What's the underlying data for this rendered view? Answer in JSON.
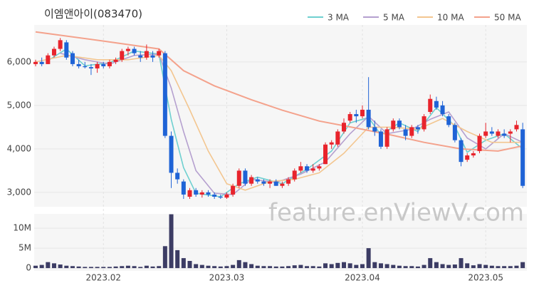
{
  "chart_data": {
    "type": "candlestick",
    "title": "이엠앤아이(083470)",
    "watermark": "feature.enViewV.com",
    "categories": [
      null,
      null,
      null,
      null,
      null,
      null,
      null,
      null,
      null,
      null,
      null,
      "2023.02",
      null,
      null,
      null,
      null,
      null,
      null,
      null,
      null,
      null,
      null,
      null,
      null,
      null,
      null,
      null,
      null,
      null,
      null,
      null,
      "2023.03",
      null,
      null,
      null,
      null,
      null,
      null,
      null,
      null,
      null,
      null,
      null,
      null,
      null,
      null,
      null,
      null,
      null,
      null,
      null,
      null,
      null,
      "2023.04",
      null,
      null,
      null,
      null,
      null,
      null,
      null,
      null,
      null,
      null,
      null,
      null,
      null,
      null,
      null,
      null,
      null,
      null,
      null,
      "2023.05",
      null,
      null,
      null,
      null,
      null,
      null
    ],
    "open": [
      5950,
      6000,
      5950,
      6150,
      6300,
      6450,
      6200,
      5950,
      5900,
      5880,
      5850,
      5950,
      5900,
      6000,
      6050,
      6250,
      6300,
      6150,
      6100,
      6150,
      6150,
      6200,
      4300,
      3450,
      3250,
      2900,
      3050,
      2950,
      3000,
      2950,
      2900,
      2880,
      2950,
      3150,
      3500,
      3200,
      3300,
      3250,
      3200,
      3250,
      3150,
      3200,
      3300,
      3500,
      3600,
      3500,
      3550,
      3650,
      4100,
      4100,
      4400,
      4650,
      4800,
      4750,
      4900,
      4500,
      4400,
      4050,
      4450,
      4650,
      4450,
      4300,
      4500,
      4450,
      4850,
      5100,
      5000,
      4750,
      4550,
      4200,
      3750,
      3850,
      3950,
      4300,
      4400,
      4300,
      4350,
      4350,
      4450,
      4450
    ],
    "high": [
      6050,
      6100,
      6200,
      6350,
      6550,
      6500,
      6250,
      6050,
      6000,
      5950,
      6000,
      6000,
      6050,
      6100,
      6300,
      6350,
      6350,
      6250,
      6400,
      6250,
      6300,
      6250,
      4400,
      3550,
      3300,
      3100,
      3100,
      3050,
      3050,
      3000,
      2950,
      3000,
      3200,
      3550,
      3550,
      3400,
      3350,
      3300,
      3300,
      3300,
      3250,
      3350,
      3550,
      3700,
      3650,
      3650,
      3650,
      4150,
      4200,
      4450,
      4700,
      4850,
      4900,
      5000,
      5650,
      4650,
      4450,
      4500,
      4700,
      4700,
      4550,
      4550,
      4550,
      4800,
      5250,
      5200,
      5100,
      4800,
      4600,
      4250,
      3900,
      3950,
      4350,
      4600,
      4500,
      4450,
      4450,
      4450,
      4650,
      4600
    ],
    "low": [
      5900,
      5900,
      5950,
      6100,
      6250,
      6050,
      5900,
      5850,
      5850,
      5700,
      5750,
      5850,
      5850,
      5950,
      6000,
      6150,
      6150,
      6000,
      6050,
      6000,
      6100,
      4250,
      3100,
      3200,
      2850,
      2850,
      2900,
      2880,
      2900,
      2850,
      2850,
      2850,
      2900,
      3100,
      3150,
      3150,
      3200,
      3150,
      3100,
      3150,
      3100,
      3150,
      3250,
      3450,
      3450,
      3450,
      3500,
      3650,
      4000,
      4050,
      4350,
      4600,
      4600,
      4700,
      4450,
      4300,
      4000,
      4000,
      4400,
      4450,
      4200,
      4250,
      4350,
      4400,
      4800,
      4900,
      4750,
      4500,
      4150,
      3600,
      3700,
      3800,
      3900,
      4250,
      4300,
      4250,
      4250,
      4150,
      4400,
      3100
    ],
    "close": [
      6000,
      5950,
      6150,
      6300,
      6500,
      6100,
      5950,
      5900,
      5880,
      5850,
      5950,
      5900,
      6000,
      6050,
      6250,
      6300,
      6200,
      6100,
      6250,
      6100,
      6250,
      4300,
      3450,
      3300,
      2950,
      3050,
      2950,
      3000,
      2950,
      2900,
      2880,
      2950,
      3150,
      3500,
      3200,
      3350,
      3250,
      3200,
      3250,
      3150,
      3200,
      3300,
      3500,
      3600,
      3500,
      3550,
      3600,
      4100,
      4150,
      4400,
      4600,
      4800,
      4750,
      4900,
      4500,
      4400,
      4050,
      4450,
      4650,
      4500,
      4300,
      4500,
      4450,
      4750,
      5150,
      4950,
      4800,
      4550,
      4200,
      3700,
      3850,
      3900,
      4300,
      4400,
      4350,
      4400,
      4300,
      4400,
      4550,
      3150
    ],
    "volume": [
      600000,
      800000,
      1500000,
      1200000,
      900000,
      600000,
      500000,
      400000,
      300000,
      300000,
      300000,
      300000,
      300000,
      400000,
      500000,
      600000,
      500000,
      300000,
      600000,
      400000,
      500000,
      5500000,
      13500000,
      4500000,
      2500000,
      1800000,
      1000000,
      800000,
      600000,
      500000,
      400000,
      500000,
      800000,
      2000000,
      1500000,
      1000000,
      600000,
      500000,
      500000,
      400000,
      400000,
      500000,
      700000,
      800000,
      500000,
      500000,
      400000,
      1200000,
      1000000,
      1300000,
      1500000,
      1200000,
      800000,
      1000000,
      5000000,
      1500000,
      1200000,
      1000000,
      800000,
      600000,
      500000,
      500000,
      400000,
      800000,
      2500000,
      1500000,
      1000000,
      800000,
      900000,
      2500000,
      1200000,
      700000,
      1000000,
      800000,
      600000,
      500000,
      500000,
      500000,
      600000,
      1500000
    ],
    "up_color": "#e8242c",
    "down_color": "#1f63d6",
    "volume_color": "#3c3c64",
    "ylim": [
      2670,
      6850
    ],
    "yticks": [
      {
        "value": 3000,
        "label": "3,000"
      },
      {
        "value": 4000,
        "label": "4,000"
      },
      {
        "value": 5000,
        "label": "5,000"
      },
      {
        "value": 6000,
        "label": "6,000"
      }
    ],
    "volume_ylim": [
      -700000,
      13600000
    ],
    "volume_yticks": [
      0,
      {
        "value": 5000000,
        "label": "5M"
      },
      {
        "value": 10000000,
        "label": "10M"
      }
    ],
    "moving_averages": [
      {
        "name": "3 MA",
        "color": "#6fd0d0",
        "x": [
          2,
          5,
          8,
          12,
          16,
          20,
          22,
          24,
          26,
          30,
          33,
          36,
          40,
          44,
          48,
          51,
          54,
          56,
          59,
          62,
          65,
          68,
          70,
          73,
          76,
          79
        ],
        "values": [
          6030,
          6300,
          5910,
          5980,
          6250,
          6180,
          4680,
          3570,
          2980,
          2900,
          3200,
          3350,
          3200,
          3530,
          3950,
          4600,
          4720,
          4320,
          4600,
          4400,
          4950,
          4520,
          3920,
          4200,
          4350,
          4000
        ]
      },
      {
        "name": "5 MA",
        "color": "#b5a0cf",
        "x": [
          4,
          8,
          12,
          16,
          20,
          22,
          24,
          26,
          29,
          32,
          35,
          39,
          43,
          47,
          51,
          54,
          57,
          61,
          64,
          67,
          70,
          73,
          76,
          79
        ],
        "values": [
          6200,
          6050,
          5950,
          6150,
          6180,
          5400,
          4400,
          3500,
          2980,
          2950,
          3300,
          3230,
          3420,
          3700,
          4350,
          4750,
          4350,
          4450,
          4680,
          4850,
          4250,
          4000,
          4350,
          4150
        ]
      },
      {
        "name": "10 MA",
        "color": "#f3c690",
        "x": [
          0,
          5,
          10,
          15,
          20,
          22,
          25,
          28,
          31,
          34,
          38,
          42,
          46,
          50,
          54,
          58,
          62,
          66,
          70,
          74,
          79
        ],
        "values": [
          6000,
          6150,
          6050,
          6050,
          6150,
          5800,
          4900,
          3950,
          3200,
          3050,
          3250,
          3300,
          3450,
          3900,
          4500,
          4500,
          4450,
          4700,
          4400,
          4150,
          4150
        ]
      },
      {
        "name": "50 MA",
        "color": "#f4a28c",
        "x": [
          0,
          11,
          20,
          24,
          29,
          35,
          40,
          46,
          52,
          58,
          63,
          69,
          75,
          79
        ],
        "values": [
          6690,
          6480,
          6300,
          5800,
          5450,
          5130,
          4890,
          4640,
          4480,
          4310,
          4150,
          4000,
          3950,
          4070
        ]
      }
    ]
  }
}
